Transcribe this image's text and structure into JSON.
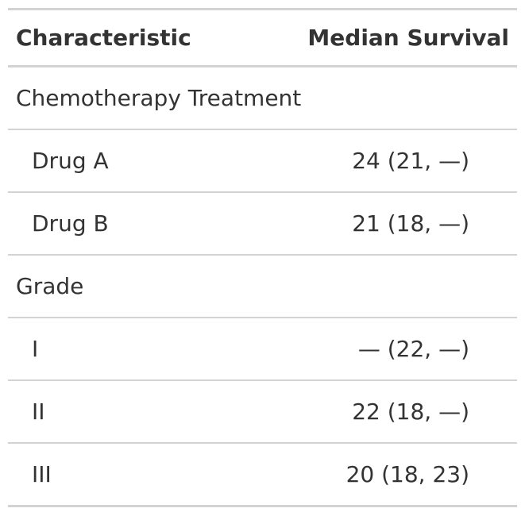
{
  "table": {
    "headers": {
      "characteristic": "Characteristic",
      "median_survival": "Median Survival"
    },
    "rows": [
      {
        "label": "Chemotherapy Treatment",
        "value": "",
        "type": "group"
      },
      {
        "label": "Drug A",
        "value": "24 (21, —)",
        "type": "level"
      },
      {
        "label": "Drug B",
        "value": "21 (18, —)",
        "type": "level"
      },
      {
        "label": "Grade",
        "value": "",
        "type": "group"
      },
      {
        "label": "I",
        "value": "— (22, —)",
        "type": "level"
      },
      {
        "label": "II",
        "value": "22 (18, —)",
        "type": "level"
      },
      {
        "label": "III",
        "value": "20 (18, 23)",
        "type": "level"
      }
    ]
  }
}
